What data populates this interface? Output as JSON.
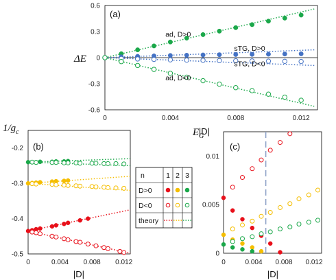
{
  "colors": {
    "n1": "#e8101a",
    "n2": "#f5be00",
    "n3": "#1ba84a",
    "sTG": "#4472c4",
    "dashed_vline": "#8fa3c8"
  },
  "chart_data": [
    {
      "panel": "(a)",
      "type": "scatter",
      "xlabel": "|D|",
      "ylabel": "ΔE",
      "xlim": [
        0,
        0.013
      ],
      "ylim": [
        -0.6,
        0.6
      ],
      "xticks": [
        "0",
        "0.004",
        "0.008",
        "0.012"
      ],
      "yticks": [
        "0.6",
        "0.3",
        "0",
        "-0.3",
        "-0.6"
      ],
      "series": [
        {
          "name": "ad, D>0",
          "color": "#1ba84a",
          "marker": "filled",
          "x": [
            0,
            0.001,
            0.002,
            0.003,
            0.004,
            0.005,
            0.006,
            0.007,
            0.008,
            0.009,
            0.01,
            0.011,
            0.012
          ],
          "y": [
            0,
            0.045,
            0.09,
            0.135,
            0.18,
            0.225,
            0.265,
            0.305,
            0.345,
            0.38,
            0.42,
            0.455,
            0.49
          ],
          "theory": {
            "x": [
              0,
              0.0128
            ],
            "y": [
              0,
              0.56
            ]
          }
        },
        {
          "name": "sTG, D>0",
          "color": "#4472c4",
          "marker": "filled",
          "x": [
            0,
            0.001,
            0.002,
            0.003,
            0.004,
            0.005,
            0.006,
            0.007,
            0.008,
            0.009,
            0.01,
            0.011,
            0.012
          ],
          "y": [
            0,
            0.01,
            0.015,
            0.02,
            0.025,
            0.028,
            0.031,
            0.034,
            0.036,
            0.038,
            0.04,
            0.042,
            0.044
          ],
          "theory": {
            "x": [
              0,
              0.0128
            ],
            "y": [
              0,
              0.09
            ]
          }
        },
        {
          "name": "sTG, D<0",
          "color": "#4472c4",
          "marker": "open",
          "x": [
            0,
            0.001,
            0.002,
            0.003,
            0.004,
            0.005,
            0.006,
            0.007,
            0.008,
            0.009,
            0.01,
            0.011,
            0.012
          ],
          "y": [
            0,
            -0.01,
            -0.015,
            -0.02,
            -0.025,
            -0.028,
            -0.031,
            -0.034,
            -0.036,
            -0.038,
            -0.04,
            -0.042,
            -0.044
          ],
          "theory": {
            "x": [
              0,
              0.0128
            ],
            "y": [
              0,
              -0.09
            ]
          }
        },
        {
          "name": "ad, D<0",
          "color": "#1ba84a",
          "marker": "open",
          "x": [
            0,
            0.001,
            0.002,
            0.003,
            0.004,
            0.005,
            0.006,
            0.007,
            0.008,
            0.009,
            0.01,
            0.011,
            0.012
          ],
          "y": [
            0,
            -0.045,
            -0.09,
            -0.135,
            -0.18,
            -0.225,
            -0.265,
            -0.305,
            -0.345,
            -0.38,
            -0.42,
            -0.455,
            -0.49
          ],
          "theory": {
            "x": [
              0,
              0.0128
            ],
            "y": [
              0,
              -0.56
            ]
          }
        }
      ],
      "annotations": [
        {
          "text": "ad, D>0",
          "x": 0.0037,
          "y": 0.24
        },
        {
          "text": "sTG, D>0",
          "x": 0.0079,
          "y": 0.08
        },
        {
          "text": "sTG, D<0",
          "x": 0.0079,
          "y": -0.1
        },
        {
          "text": "ad, D<0",
          "x": 0.0037,
          "y": -0.26
        }
      ]
    },
    {
      "panel": "(b)",
      "type": "scatter",
      "xlabel": "|D|",
      "ylabel": "1/g_c",
      "xlim": [
        0,
        0.0128
      ],
      "ylim": [
        -0.5,
        -0.15
      ],
      "xticks": [
        "0",
        "0.004",
        "0.008",
        "0.012"
      ],
      "yticks": [
        "-0.2",
        "-0.3",
        "-0.4",
        "-0.5"
      ],
      "series": [
        {
          "name": "n=3, D>0",
          "color": "#1ba84a",
          "marker": "filled",
          "x": [
            0,
            0.0005,
            0.001,
            0.0015,
            0.003,
            0.0035,
            0.0045,
            0.005
          ],
          "y": [
            -0.24,
            -0.24,
            -0.24,
            -0.239,
            -0.239,
            -0.238,
            -0.238,
            -0.237
          ],
          "theory": {
            "x": [
              0,
              0.0128
            ],
            "y": [
              -0.24,
              -0.23
            ]
          }
        },
        {
          "name": "n=3, D<0",
          "color": "#1ba84a",
          "marker": "open",
          "x": [
            0.0005,
            0.001,
            0.003,
            0.0035,
            0.0045,
            0.005,
            0.006,
            0.0065,
            0.008,
            0.0085,
            0.0095,
            0.01,
            0.011,
            0.012
          ],
          "y": [
            -0.24,
            -0.241,
            -0.241,
            -0.241,
            -0.242,
            -0.242,
            -0.242,
            -0.243,
            -0.243,
            -0.243,
            -0.244,
            -0.244,
            -0.244,
            -0.245
          ],
          "theory": {
            "x": [
              0,
              0.0128
            ],
            "y": [
              -0.24,
              -0.25
            ]
          }
        },
        {
          "name": "n=2, D>0",
          "color": "#f5be00",
          "marker": "filled",
          "x": [
            0,
            0.0005,
            0.001,
            0.0015,
            0.003,
            0.0035,
            0.0045,
            0.005
          ],
          "y": [
            -0.3,
            -0.299,
            -0.298,
            -0.297,
            -0.295,
            -0.294,
            -0.293,
            -0.292
          ],
          "theory": {
            "x": [
              0,
              0.0128
            ],
            "y": [
              -0.3,
              -0.28
            ]
          }
        },
        {
          "name": "n=2, D<0",
          "color": "#f5be00",
          "marker": "open",
          "x": [
            0.0005,
            0.001,
            0.003,
            0.0035,
            0.0045,
            0.005,
            0.006,
            0.0065,
            0.008,
            0.0085,
            0.0095,
            0.01,
            0.011,
            0.012
          ],
          "y": [
            -0.301,
            -0.302,
            -0.303,
            -0.304,
            -0.305,
            -0.306,
            -0.307,
            -0.308,
            -0.309,
            -0.31,
            -0.311,
            -0.312,
            -0.313,
            -0.314
          ],
          "theory": {
            "x": [
              0,
              0.0128
            ],
            "y": [
              -0.3,
              -0.32
            ]
          }
        },
        {
          "name": "n=1, D>0",
          "color": "#e8101a",
          "marker": "filled",
          "x": [
            0,
            0.0005,
            0.001,
            0.0015,
            0.003,
            0.0035,
            0.0045,
            0.005,
            0.0065,
            0.0075
          ],
          "y": [
            -0.435,
            -0.433,
            -0.43,
            -0.428,
            -0.422,
            -0.419,
            -0.415,
            -0.412,
            -0.405,
            -0.4
          ],
          "theory": {
            "x": [
              0,
              0.0128
            ],
            "y": [
              -0.435,
              -0.375
            ]
          }
        },
        {
          "name": "n=1, D<0",
          "color": "#e8101a",
          "marker": "open",
          "x": [
            0.0005,
            0.001,
            0.0015,
            0.003,
            0.0035,
            0.0045,
            0.005,
            0.006,
            0.0065,
            0.0075,
            0.0085,
            0.0095,
            0.01,
            0.0115,
            0.012
          ],
          "y": [
            -0.438,
            -0.44,
            -0.443,
            -0.45,
            -0.452,
            -0.457,
            -0.46,
            -0.465,
            -0.467,
            -0.472,
            -0.477,
            -0.482,
            -0.485,
            -0.493,
            -0.496
          ],
          "theory": {
            "x": [
              0,
              0.0128
            ],
            "y": [
              -0.435,
              -0.498
            ]
          }
        }
      ]
    },
    {
      "panel": "(c)",
      "type": "scatter",
      "xlabel": "|D|",
      "ylabel": "E_G",
      "xlim": [
        0,
        0.013
      ],
      "ylim": [
        0,
        0.0125
      ],
      "xticks": [
        "0",
        "0.004",
        "0.008",
        "0.012"
      ],
      "yticks": [
        "0",
        "0.005",
        "0.01"
      ],
      "vline": {
        "x": 0.0056,
        "style": "dashed"
      },
      "series": [
        {
          "name": "n=1, D>0",
          "color": "#e8101a",
          "marker": "filled",
          "x": [
            0,
            0.0012,
            0.0025,
            0.0038,
            0.005,
            0.0062,
            0.0075
          ],
          "y": [
            0.0057,
            0.0044,
            0.0035,
            0.0026,
            0.0018,
            0.001,
            0.0001
          ]
        },
        {
          "name": "n=1, D<0",
          "color": "#e8101a",
          "marker": "open",
          "x": [
            0.0012,
            0.0025,
            0.0038,
            0.005,
            0.0062,
            0.0075,
            0.0088
          ],
          "y": [
            0.0068,
            0.0078,
            0.0087,
            0.0096,
            0.0106,
            0.0114,
            0.0123
          ]
        },
        {
          "name": "n=2, D>0",
          "color": "#f5be00",
          "marker": "filled",
          "x": [
            0,
            0.0012,
            0.0025,
            0.0038,
            0.005
          ],
          "y": [
            0.0019,
            0.0014,
            0.001,
            0.0006,
            0.0002
          ]
        },
        {
          "name": "n=2, D<0",
          "color": "#f5be00",
          "marker": "open",
          "x": [
            0.0012,
            0.0025,
            0.0038,
            0.005,
            0.0062,
            0.0075,
            0.0088,
            0.01,
            0.0113,
            0.0125
          ],
          "y": [
            0.0025,
            0.0029,
            0.0033,
            0.0038,
            0.0042,
            0.0047,
            0.0051,
            0.0056,
            0.006,
            0.0065
          ]
        },
        {
          "name": "n=3, D>0",
          "color": "#1ba84a",
          "marker": "filled",
          "x": [
            0,
            0.0012,
            0.0025,
            0.0038
          ],
          "y": [
            0.0009,
            0.0006,
            0.0004,
            0.0002
          ]
        },
        {
          "name": "n=3, D<0",
          "color": "#1ba84a",
          "marker": "open",
          "x": [
            0.0012,
            0.0025,
            0.0038,
            0.005,
            0.0062,
            0.0075,
            0.0088,
            0.01,
            0.0113,
            0.0125
          ],
          "y": [
            0.0012,
            0.0015,
            0.0017,
            0.002,
            0.0022,
            0.0025,
            0.0027,
            0.003,
            0.0032,
            0.0034
          ]
        }
      ]
    }
  ],
  "legend_table": {
    "header": [
      "n",
      "1",
      "2",
      "3"
    ],
    "rows": [
      {
        "label": "D>0",
        "marker": "filled"
      },
      {
        "label": "D<0",
        "marker": "open"
      },
      {
        "label": "theory",
        "marker": "dotted"
      }
    ]
  }
}
